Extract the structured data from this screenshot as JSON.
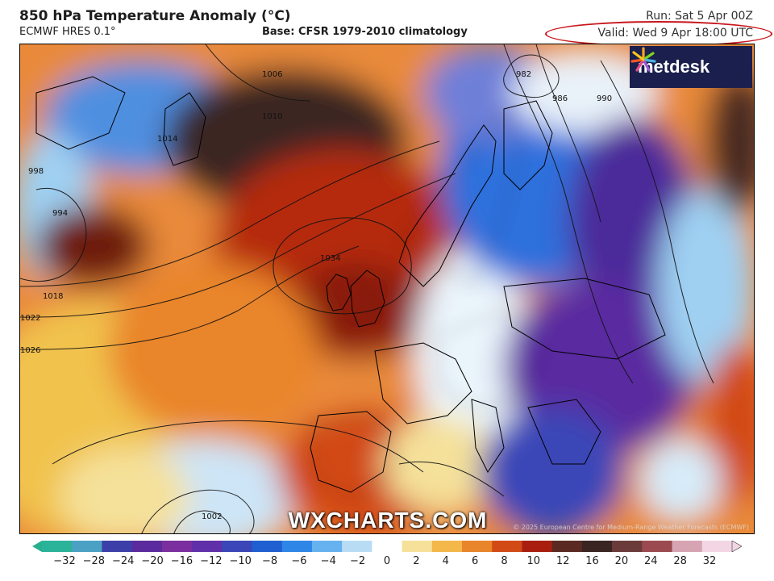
{
  "header": {
    "title": "850 hPa Temperature Anomaly (°C)",
    "model": "ECMWF HRES 0.1°",
    "base": "Base: CFSR 1979-2010 climatology",
    "run": "Run: Sat 5 Apr 00Z",
    "valid": "Valid: Wed 9 Apr 18:00 UTC"
  },
  "map": {
    "logo_text": "metdesk",
    "watermark": "WXCHARTS.COM",
    "credit": "© 2025 European Centre for Medium-Range Weather Forecasts (ECMWF)",
    "isobar_labels": [
      "1006",
      "1010",
      "1014",
      "1018",
      "1022",
      "1026",
      "994",
      "998",
      "1002",
      "982",
      "986",
      "990",
      "1034"
    ]
  },
  "colorbar": {
    "ticks": [
      "−32",
      "−28",
      "−24",
      "−20",
      "−16",
      "−12",
      "−10",
      "−8",
      "−6",
      "−4",
      "−2",
      "0",
      "2",
      "4",
      "6",
      "8",
      "10",
      "12",
      "16",
      "20",
      "24",
      "28",
      "32"
    ],
    "colors": [
      "#2bb39a",
      "#4aa1c4",
      "#3d3fa8",
      "#5b2a9c",
      "#7a2f9e",
      "#6030a8",
      "#3b46b7",
      "#1f5fd0",
      "#2e86e6",
      "#66b2f0",
      "#b9dcf5",
      "#ffffff",
      "#f5e19a",
      "#f3b74a",
      "#e9852b",
      "#d24a16",
      "#a81f10",
      "#5a2a22",
      "#3a2522",
      "#6b3b3b",
      "#9b4b4f",
      "#d7a4b4",
      "#f3d6e3"
    ]
  }
}
